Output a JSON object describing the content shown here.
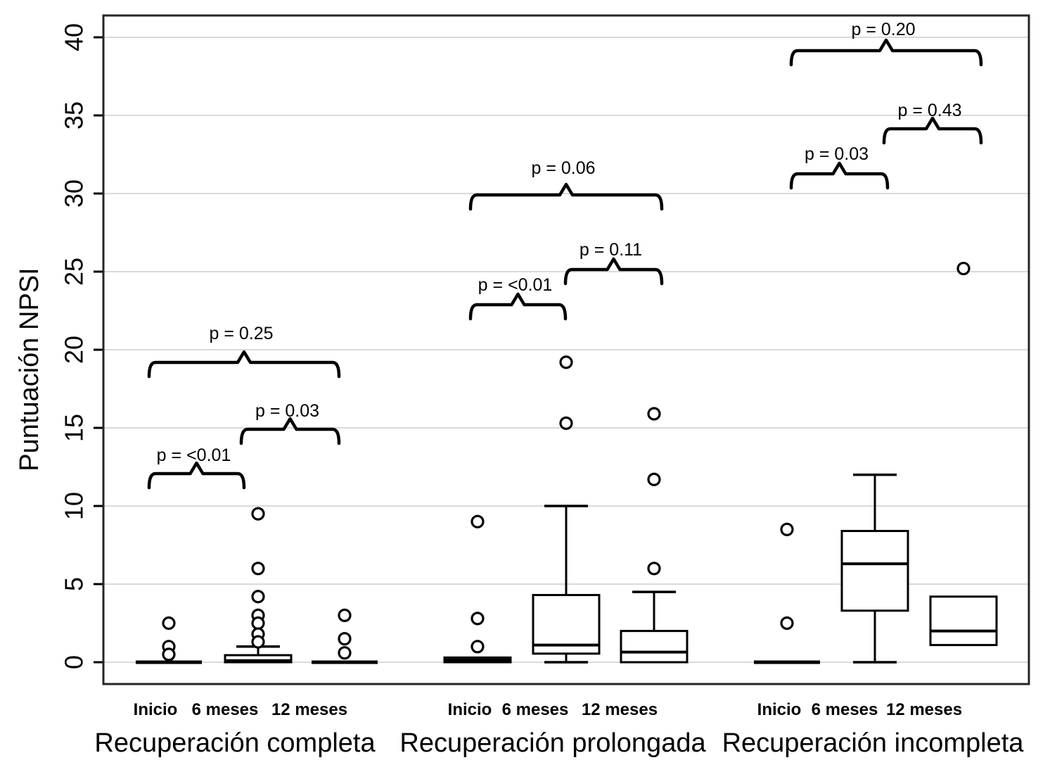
{
  "chart_data": {
    "type": "boxplot",
    "title": "",
    "ylabel": "Puntuación NPSI",
    "xlabel": "",
    "ylim": [
      0,
      41.4
    ],
    "yticks": [
      0,
      5,
      10,
      15,
      20,
      25,
      30,
      35,
      40
    ],
    "grid": true,
    "legend": "none",
    "timepoints": [
      "Inicio",
      "6 meses",
      "12 meses"
    ],
    "groups": [
      {
        "label": "Recuperación completa",
        "boxes": [
          {
            "timepoint": "Inicio",
            "collapsed": true,
            "median": 0,
            "q1": 0,
            "q3": 0,
            "whisker_low": null,
            "whisker_high": null,
            "outliers": [
              2.5,
              1.0,
              0.5
            ]
          },
          {
            "timepoint": "6 meses",
            "collapsed": false,
            "median": 0.1,
            "q1": 0,
            "q3": 0.45,
            "whisker_low": null,
            "whisker_high": 1.0,
            "outliers": [
              9.5,
              6.0,
              4.2,
              3.0,
              2.5,
              1.8,
              1.3
            ]
          },
          {
            "timepoint": "12 meses",
            "collapsed": true,
            "median": 0,
            "q1": 0,
            "q3": 0,
            "whisker_low": null,
            "whisker_high": null,
            "outliers": [
              3.0,
              1.5,
              0.6
            ]
          }
        ],
        "comparisons": [
          {
            "between": [
              "Inicio",
              "6 meses"
            ],
            "p_label": "p = <0.01"
          },
          {
            "between": [
              "6 meses",
              "12 meses"
            ],
            "p_label": "p = 0.03"
          },
          {
            "between": [
              "Inicio",
              "12 meses"
            ],
            "p_label": "p = 0.25"
          }
        ]
      },
      {
        "label": "Recuperación prolongada",
        "boxes": [
          {
            "timepoint": "Inicio",
            "collapsed": false,
            "median": 0.15,
            "q1": 0,
            "q3": 0.3,
            "whisker_low": null,
            "whisker_high": null,
            "outliers": [
              9.0,
              2.8,
              1.0
            ]
          },
          {
            "timepoint": "6 meses",
            "collapsed": false,
            "median": 1.1,
            "q1": 0.55,
            "q3": 4.3,
            "whisker_low": 0,
            "whisker_high": 10.0,
            "outliers": [
              19.2,
              15.3
            ]
          },
          {
            "timepoint": "12 meses",
            "collapsed": false,
            "median": 0.65,
            "q1": 0,
            "q3": 2.0,
            "whisker_low": null,
            "whisker_high": 4.5,
            "outliers": [
              15.9,
              11.7,
              6.0
            ]
          }
        ],
        "comparisons": [
          {
            "between": [
              "Inicio",
              "6 meses"
            ],
            "p_label": "p = <0.01"
          },
          {
            "between": [
              "6 meses",
              "12 meses"
            ],
            "p_label": "p = 0.11"
          },
          {
            "between": [
              "Inicio",
              "12 meses"
            ],
            "p_label": "p = 0.06"
          }
        ]
      },
      {
        "label": "Recuperación incompleta",
        "boxes": [
          {
            "timepoint": "Inicio",
            "collapsed": true,
            "median": 0,
            "q1": 0,
            "q3": 0,
            "whisker_low": null,
            "whisker_high": null,
            "outliers": [
              8.5,
              2.5
            ]
          },
          {
            "timepoint": "6 meses",
            "collapsed": false,
            "median": 6.3,
            "q1": 3.3,
            "q3": 8.4,
            "whisker_low": 0,
            "whisker_high": 12.0,
            "outliers": []
          },
          {
            "timepoint": "12 meses",
            "collapsed": false,
            "median": 2.0,
            "q1": 1.1,
            "q3": 4.2,
            "whisker_low": null,
            "whisker_high": null,
            "outliers": [
              25.2
            ]
          }
        ],
        "comparisons": [
          {
            "between": [
              "Inicio",
              "6 meses"
            ],
            "p_label": "p = 0.03"
          },
          {
            "between": [
              "6 meses",
              "12 meses"
            ],
            "p_label": "p = 0.43"
          },
          {
            "between": [
              "Inicio",
              "12 meses"
            ],
            "p_label": "p = 0.20"
          }
        ]
      }
    ],
    "style": {
      "background": "#ffffff",
      "box_stroke": "#000000",
      "gridline_color": "#d9d9d9",
      "border_color": "#262626",
      "text_color": "#000000"
    }
  }
}
